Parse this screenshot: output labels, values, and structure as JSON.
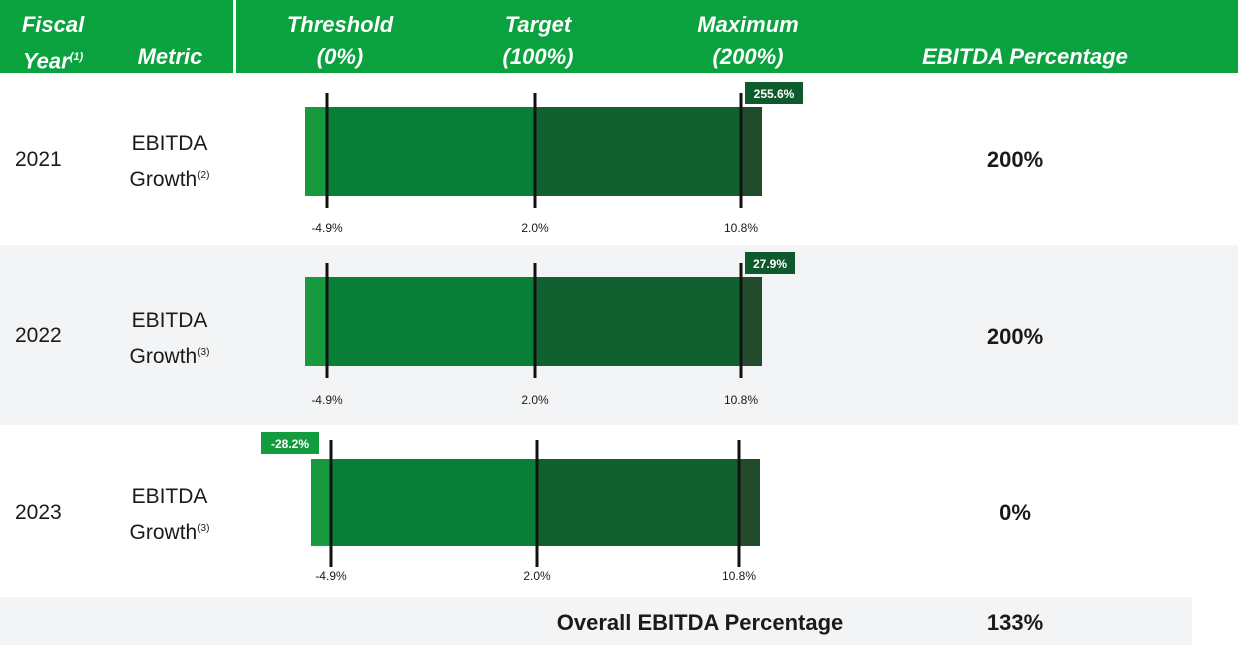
{
  "header": {
    "fiscal_year": "Fiscal",
    "fiscal_year_2": "Year",
    "fiscal_year_note": "(1)",
    "metric": "Metric",
    "threshold": "Threshold",
    "threshold_pct": "(0%)",
    "target": "Target",
    "target_pct": "(100%)",
    "maximum": "Maximum",
    "maximum_pct": "(200%)",
    "ebitda_percentage": "EBITDA Percentage"
  },
  "rows": [
    {
      "year": "2021",
      "metric_line1": "EBITDA",
      "metric_line2": "Growth",
      "note": "(2)",
      "percentage": "200%"
    },
    {
      "year": "2022",
      "metric_line1": "EBITDA",
      "metric_line2": "Growth",
      "note": "(3)",
      "percentage": "200%"
    },
    {
      "year": "2023",
      "metric_line1": "EBITDA",
      "metric_line2": "Growth",
      "note": "(3)",
      "percentage": "0%"
    }
  ],
  "total": {
    "label": "Overall EBITDA Percentage",
    "value": "133%"
  },
  "colors": {
    "header": "#0aa23f",
    "threshold_segment": "#169a3d",
    "low_segment": "#087e37",
    "high_segment": "#116130",
    "over_segment": "#214b2a",
    "label_dark": "#0f5a2c",
    "label_bright": "#129b3f"
  },
  "chart_data": {
    "type": "bar",
    "title": "",
    "goal_points": [
      {
        "name": "Threshold",
        "payout": "0%",
        "value": -4.9,
        "label": "-4.9%"
      },
      {
        "name": "Target",
        "payout": "100%",
        "value": 2.0,
        "label": "2.0%"
      },
      {
        "name": "Maximum",
        "payout": "200%",
        "value": 10.8,
        "label": "10.8%"
      }
    ],
    "series": [
      {
        "year": "2021",
        "actual": 255.6,
        "actual_label": "255.6%"
      },
      {
        "year": "2022",
        "actual": 27.9,
        "actual_label": "27.9%"
      },
      {
        "year": "2023",
        "actual": -28.2,
        "actual_label": "-28.2%"
      }
    ]
  }
}
